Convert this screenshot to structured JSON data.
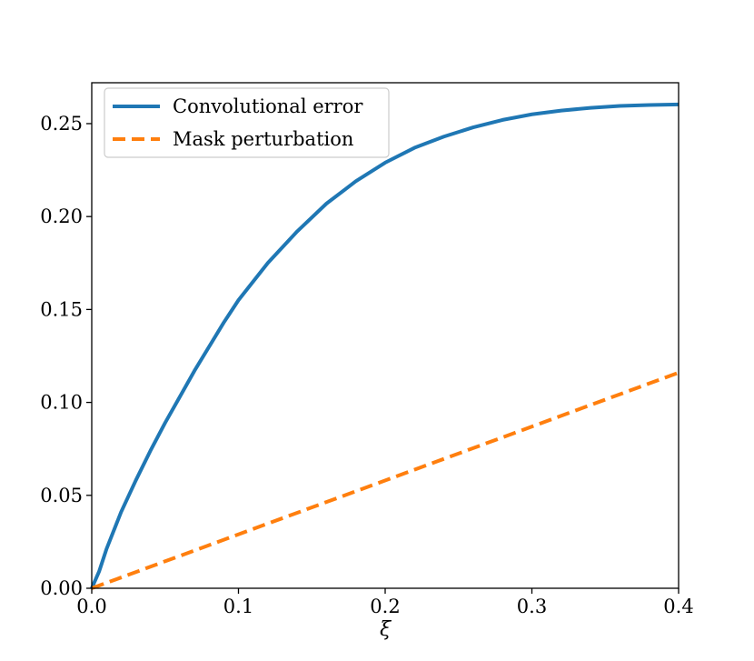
{
  "chart_data": {
    "type": "line",
    "title": "",
    "xlabel": "ξ",
    "ylabel": "",
    "xlim": [
      0.0,
      0.4
    ],
    "ylim": [
      0.0,
      0.272
    ],
    "xticks": [
      0.0,
      0.1,
      0.2,
      0.3,
      0.4
    ],
    "xtick_labels": [
      "0.0",
      "0.1",
      "0.2",
      "0.3",
      "0.4"
    ],
    "yticks": [
      0.0,
      0.05,
      0.1,
      0.15,
      0.2,
      0.25
    ],
    "ytick_labels": [
      "0.00",
      "0.05",
      "0.10",
      "0.15",
      "0.20",
      "0.25"
    ],
    "grid": false,
    "legend_position": "top-left",
    "series": [
      {
        "name": "Convolutional error",
        "color": "#1f77b4",
        "style": "solid",
        "x": [
          0.0,
          0.005,
          0.01,
          0.02,
          0.03,
          0.04,
          0.05,
          0.06,
          0.07,
          0.08,
          0.09,
          0.1,
          0.12,
          0.14,
          0.16,
          0.18,
          0.2,
          0.22,
          0.24,
          0.26,
          0.28,
          0.3,
          0.32,
          0.34,
          0.36,
          0.38,
          0.4
        ],
        "y": [
          0.0,
          0.009,
          0.021,
          0.041,
          0.058,
          0.074,
          0.089,
          0.103,
          0.117,
          0.13,
          0.143,
          0.155,
          0.175,
          0.192,
          0.207,
          0.219,
          0.229,
          0.237,
          0.243,
          0.248,
          0.252,
          0.255,
          0.257,
          0.2585,
          0.2595,
          0.26,
          0.2603
        ]
      },
      {
        "name": "Mask perturbation",
        "color": "#ff7f0e",
        "style": "dashed",
        "x": [
          0.0,
          0.4
        ],
        "y": [
          0.0,
          0.116
        ]
      }
    ]
  }
}
